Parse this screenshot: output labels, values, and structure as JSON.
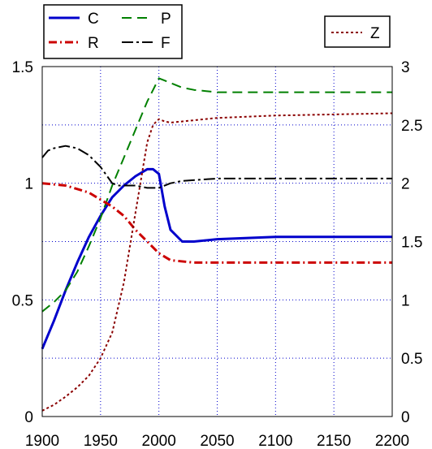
{
  "chart_data": {
    "type": "line",
    "grid": true,
    "xlim": [
      1900,
      2200
    ],
    "ylim_left": [
      0,
      1.5
    ],
    "ylim_right": [
      0,
      3
    ],
    "x_ticks": [
      "1900",
      "1950",
      "2000",
      "2050",
      "2100",
      "2150",
      "2200"
    ],
    "y_left_ticks": [
      "0",
      "0.5",
      "1",
      "1.5"
    ],
    "y_right_ticks": [
      "0",
      "0.5",
      "1",
      "1.5",
      "2",
      "2.5",
      "3"
    ],
    "legend_left": [
      {
        "name": "C",
        "color": "#0000cc",
        "style": "solid"
      },
      {
        "name": "P",
        "color": "#008000",
        "style": "dashed"
      },
      {
        "name": "R",
        "color": "#cc0000",
        "style": "dashdot"
      },
      {
        "name": "F",
        "color": "#000000",
        "style": "dashdot"
      }
    ],
    "legend_right": [
      {
        "name": "Z",
        "color": "#8b0000",
        "style": "dotted"
      }
    ],
    "series": [
      {
        "name": "C",
        "axis": "left",
        "color": "#0000cc",
        "dash": "",
        "width": 3,
        "x": [
          1900,
          1910,
          1920,
          1930,
          1940,
          1950,
          1960,
          1970,
          1980,
          1990,
          1995,
          2000,
          2005,
          2010,
          2020,
          2030,
          2050,
          2100,
          2150,
          2200
        ],
        "y": [
          0.29,
          0.41,
          0.54,
          0.66,
          0.77,
          0.86,
          0.94,
          0.99,
          1.03,
          1.06,
          1.06,
          1.04,
          0.9,
          0.8,
          0.75,
          0.75,
          0.76,
          0.77,
          0.77,
          0.77
        ]
      },
      {
        "name": "P",
        "axis": "left",
        "color": "#008000",
        "dash": "12,7",
        "width": 2,
        "x": [
          1900,
          1910,
          1920,
          1930,
          1940,
          1950,
          1960,
          1970,
          1980,
          1990,
          2000,
          2005,
          2010,
          2020,
          2030,
          2050,
          2100,
          2200
        ],
        "y": [
          0.45,
          0.49,
          0.54,
          0.62,
          0.73,
          0.85,
          0.99,
          1.11,
          1.23,
          1.35,
          1.45,
          1.44,
          1.43,
          1.41,
          1.4,
          1.39,
          1.39,
          1.39
        ]
      },
      {
        "name": "R",
        "axis": "left",
        "color": "#cc0000",
        "dash": "10,4,2,4",
        "width": 3,
        "x": [
          1900,
          1920,
          1940,
          1950,
          1960,
          1970,
          1980,
          1990,
          2000,
          2010,
          2030,
          2050,
          2100,
          2200
        ],
        "y": [
          1.0,
          0.99,
          0.96,
          0.93,
          0.9,
          0.86,
          0.8,
          0.75,
          0.7,
          0.67,
          0.66,
          0.66,
          0.66,
          0.66
        ]
      },
      {
        "name": "F",
        "axis": "left",
        "color": "#000000",
        "dash": "14,4,3,4",
        "width": 2,
        "x": [
          1900,
          1905,
          1910,
          1920,
          1930,
          1940,
          1950,
          1960,
          1965,
          1970,
          1980,
          1990,
          2000,
          2010,
          2020,
          2050,
          2100,
          2200
        ],
        "y": [
          1.11,
          1.14,
          1.15,
          1.16,
          1.15,
          1.12,
          1.07,
          1.0,
          0.99,
          0.99,
          0.99,
          0.98,
          0.98,
          1.0,
          1.01,
          1.02,
          1.02,
          1.02
        ]
      },
      {
        "name": "Z",
        "axis": "right",
        "color": "#8b0000",
        "dash": "3,3",
        "width": 2,
        "x": [
          1900,
          1910,
          1920,
          1930,
          1940,
          1950,
          1960,
          1970,
          1980,
          1990,
          1995,
          2000,
          2005,
          2010,
          2030,
          2050,
          2100,
          2150,
          2200
        ],
        "y": [
          0.05,
          0.1,
          0.17,
          0.25,
          0.35,
          0.5,
          0.72,
          1.15,
          1.75,
          2.35,
          2.5,
          2.55,
          2.53,
          2.52,
          2.54,
          2.56,
          2.58,
          2.59,
          2.6
        ]
      }
    ]
  }
}
